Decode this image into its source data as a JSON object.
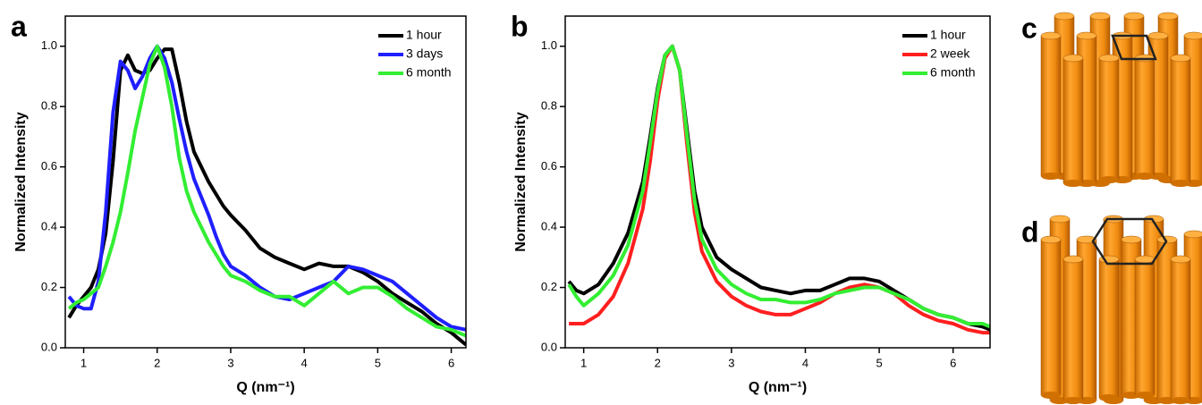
{
  "chart_data": [
    {
      "type": "line",
      "label": "a",
      "x_label": "Q (nm⁻¹)",
      "y_label": "Normalized Intensity",
      "x": [
        0.8,
        0.9,
        1.0,
        1.1,
        1.2,
        1.3,
        1.4,
        1.5,
        1.6,
        1.7,
        1.8,
        1.9,
        2.0,
        2.1,
        2.2,
        2.3,
        2.4,
        2.5,
        2.6,
        2.7,
        2.8,
        2.9,
        3.0,
        3.2,
        3.4,
        3.6,
        3.8,
        4.0,
        4.2,
        4.4,
        4.6,
        4.8,
        5.0,
        5.2,
        5.4,
        5.6,
        5.8,
        6.0,
        6.2
      ],
      "series": [
        {
          "name": "1 hour",
          "color": "#000000",
          "values": [
            0.1,
            0.14,
            0.17,
            0.2,
            0.26,
            0.38,
            0.62,
            0.92,
            0.97,
            0.92,
            0.91,
            0.92,
            0.96,
            0.99,
            0.99,
            0.88,
            0.75,
            0.65,
            0.6,
            0.55,
            0.51,
            0.47,
            0.44,
            0.39,
            0.33,
            0.3,
            0.28,
            0.26,
            0.28,
            0.27,
            0.27,
            0.25,
            0.22,
            0.18,
            0.15,
            0.12,
            0.08,
            0.05,
            0.01
          ]
        },
        {
          "name": "3 days",
          "color": "#1f1fff",
          "values": [
            0.17,
            0.14,
            0.13,
            0.13,
            0.22,
            0.45,
            0.78,
            0.95,
            0.92,
            0.86,
            0.9,
            0.96,
            1.0,
            0.96,
            0.88,
            0.76,
            0.65,
            0.56,
            0.5,
            0.44,
            0.37,
            0.31,
            0.27,
            0.24,
            0.2,
            0.17,
            0.16,
            0.18,
            0.2,
            0.22,
            0.27,
            0.26,
            0.24,
            0.22,
            0.18,
            0.14,
            0.1,
            0.07,
            0.06
          ]
        },
        {
          "name": "6 month",
          "color": "#33ee33",
          "values": [
            0.13,
            0.15,
            0.16,
            0.18,
            0.2,
            0.27,
            0.35,
            0.45,
            0.58,
            0.72,
            0.83,
            0.94,
            1.0,
            0.93,
            0.8,
            0.63,
            0.52,
            0.45,
            0.4,
            0.35,
            0.31,
            0.27,
            0.24,
            0.22,
            0.19,
            0.17,
            0.17,
            0.14,
            0.18,
            0.22,
            0.18,
            0.2,
            0.2,
            0.17,
            0.13,
            0.1,
            0.07,
            0.06,
            0.04
          ]
        }
      ],
      "xlim": [
        0.75,
        6.2
      ],
      "ylim": [
        0,
        1.1
      ],
      "xticks": [
        1,
        2,
        3,
        4,
        5,
        6
      ],
      "yticks": [
        {
          "value": 0,
          "label": "0.0"
        },
        0.2,
        0.4,
        0.6,
        0.8,
        {
          "value": 1,
          "label": "1.0"
        }
      ],
      "legend": "upper right"
    },
    {
      "type": "line",
      "label": "b",
      "x_label": "Q (nm⁻¹)",
      "y_label": "Normalized Intensity",
      "x": [
        0.8,
        0.9,
        1.0,
        1.2,
        1.4,
        1.6,
        1.8,
        1.9,
        2.0,
        2.1,
        2.2,
        2.3,
        2.4,
        2.5,
        2.6,
        2.8,
        3.0,
        3.2,
        3.4,
        3.6,
        3.8,
        4.0,
        4.2,
        4.4,
        4.6,
        4.8,
        5.0,
        5.2,
        5.4,
        5.6,
        5.8,
        6.0,
        6.2,
        6.4,
        6.5
      ],
      "series": [
        {
          "name": "1 hour",
          "color": "#000000",
          "values": [
            0.22,
            0.19,
            0.18,
            0.21,
            0.28,
            0.38,
            0.55,
            0.7,
            0.86,
            0.97,
            1.0,
            0.92,
            0.72,
            0.52,
            0.4,
            0.3,
            0.26,
            0.23,
            0.2,
            0.19,
            0.18,
            0.19,
            0.19,
            0.21,
            0.23,
            0.23,
            0.22,
            0.19,
            0.16,
            0.13,
            0.11,
            0.1,
            0.08,
            0.07,
            0.06
          ]
        },
        {
          "name": "2 week",
          "color": "#ff1f1f",
          "values": [
            0.08,
            0.08,
            0.08,
            0.11,
            0.17,
            0.28,
            0.46,
            0.62,
            0.82,
            0.96,
            1.0,
            0.92,
            0.67,
            0.45,
            0.32,
            0.22,
            0.17,
            0.14,
            0.12,
            0.11,
            0.11,
            0.13,
            0.15,
            0.18,
            0.2,
            0.21,
            0.2,
            0.18,
            0.14,
            0.11,
            0.09,
            0.08,
            0.06,
            0.05,
            0.05
          ]
        },
        {
          "name": "6 month",
          "color": "#33ee33",
          "values": [
            0.21,
            0.17,
            0.14,
            0.18,
            0.24,
            0.34,
            0.52,
            0.68,
            0.85,
            0.97,
            1.0,
            0.92,
            0.7,
            0.49,
            0.36,
            0.26,
            0.21,
            0.18,
            0.16,
            0.16,
            0.15,
            0.15,
            0.16,
            0.18,
            0.19,
            0.2,
            0.2,
            0.18,
            0.16,
            0.13,
            0.11,
            0.1,
            0.08,
            0.08,
            0.07
          ]
        }
      ],
      "xlim": [
        0.75,
        6.5
      ],
      "ylim": [
        0,
        1.1
      ],
      "xticks": [
        1,
        2,
        3,
        4,
        5,
        6
      ],
      "yticks": [
        {
          "value": 0,
          "label": "0.0"
        },
        0.2,
        0.4,
        0.6,
        0.8,
        {
          "value": 1,
          "label": "1.0"
        }
      ],
      "legend": "upper right"
    }
  ],
  "illustrations": [
    {
      "label": "c"
    },
    {
      "label": "d"
    }
  ]
}
